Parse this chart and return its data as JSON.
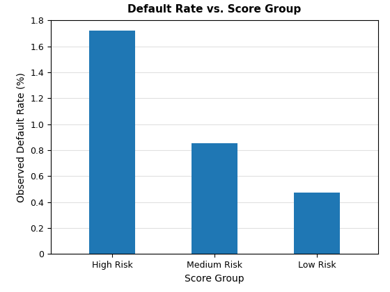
{
  "categories": [
    "High Risk",
    "Medium Risk",
    "Low Risk"
  ],
  "values": [
    1.72,
    0.855,
    0.475
  ],
  "bar_color": "#1f77b4",
  "title": "Default Rate vs. Score Group",
  "xlabel": "Score Group",
  "ylabel": "Observed Default Rate (%)",
  "ylim": [
    0,
    1.8
  ],
  "yticks": [
    0,
    0.2,
    0.4,
    0.6,
    0.8,
    1.0,
    1.2,
    1.4,
    1.6,
    1.8
  ],
  "title_fontsize": 11,
  "label_fontsize": 10,
  "tick_fontsize": 9,
  "background_color": "#ffffff",
  "grid_color": "#e0e0e0",
  "bar_width": 0.45
}
